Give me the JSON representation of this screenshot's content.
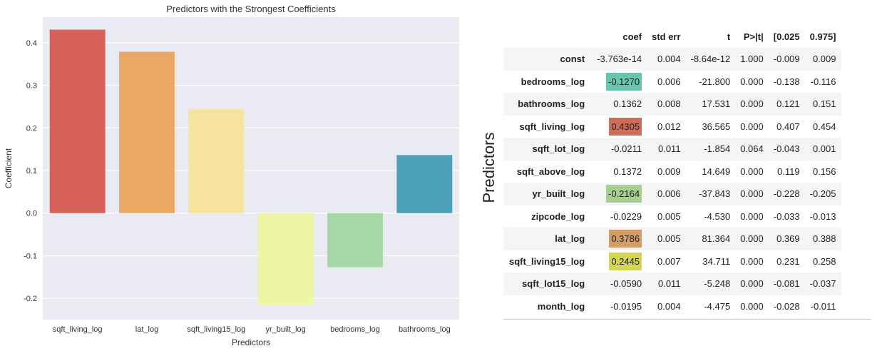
{
  "chart_data": {
    "type": "bar",
    "title": "Predictors with the Strongest Coefficients",
    "xlabel": "Predictors",
    "ylabel": "Coefficient",
    "categories": [
      "sqft_living_log",
      "lat_log",
      "sqft_living15_log",
      "yr_built_log",
      "bedrooms_log",
      "bathrooms_log"
    ],
    "values": [
      0.4305,
      0.3786,
      0.2445,
      -0.2164,
      -0.127,
      0.1362
    ],
    "colors": [
      "#d7605a",
      "#eba864",
      "#f6e39e",
      "#eef5a3",
      "#a6d7a7",
      "#4ba1b5"
    ],
    "ylim": [
      -0.25,
      0.46
    ],
    "yticks": [
      -0.2,
      -0.1,
      0.0,
      0.1,
      0.2,
      0.3,
      0.4
    ],
    "ytick_labels": [
      "-0.2",
      "-0.1",
      "0.0",
      "0.1",
      "0.2",
      "0.3",
      "0.4"
    ],
    "grid": true,
    "background": "#eaeaf2"
  },
  "table": {
    "side_label": "Predictors",
    "columns": [
      "",
      "coef",
      "std err",
      "t",
      "P>|t|",
      "[0.025",
      "0.975]"
    ],
    "rows": [
      {
        "name": "const",
        "coef": "-3.763e-14",
        "std_err": "0.004",
        "t": "-8.64e-12",
        "p": "1.000",
        "lo": "-0.009",
        "hi": "0.009",
        "hl": ""
      },
      {
        "name": "bedrooms_log",
        "coef": "-0.1270",
        "std_err": "0.006",
        "t": "-21.800",
        "p": "0.000",
        "lo": "-0.138",
        "hi": "-0.116",
        "hl": "#6ac5ad"
      },
      {
        "name": "bathrooms_log",
        "coef": "0.1362",
        "std_err": "0.008",
        "t": "17.531",
        "p": "0.000",
        "lo": "0.121",
        "hi": "0.151",
        "hl": ""
      },
      {
        "name": "sqft_living_log",
        "coef": "0.4305",
        "std_err": "0.012",
        "t": "36.565",
        "p": "0.000",
        "lo": "0.407",
        "hi": "0.454",
        "hl": "#cd6e5c"
      },
      {
        "name": "sqft_lot_log",
        "coef": "-0.0211",
        "std_err": "0.011",
        "t": "-1.854",
        "p": "0.064",
        "lo": "-0.043",
        "hi": "0.001",
        "hl": ""
      },
      {
        "name": "sqft_above_log",
        "coef": "0.1372",
        "std_err": "0.009",
        "t": "14.649",
        "p": "0.000",
        "lo": "0.119",
        "hi": "0.156",
        "hl": ""
      },
      {
        "name": "yr_built_log",
        "coef": "-0.2164",
        "std_err": "0.006",
        "t": "-37.843",
        "p": "0.000",
        "lo": "-0.228",
        "hi": "-0.205",
        "hl": "#a8cf92"
      },
      {
        "name": "zipcode_log",
        "coef": "-0.0229",
        "std_err": "0.005",
        "t": "-4.530",
        "p": "0.000",
        "lo": "-0.033",
        "hi": "-0.013",
        "hl": ""
      },
      {
        "name": "lat_log",
        "coef": "0.3786",
        "std_err": "0.005",
        "t": "81.364",
        "p": "0.000",
        "lo": "0.369",
        "hi": "0.388",
        "hl": "#d49c66"
      },
      {
        "name": "sqft_living15_log",
        "coef": "0.2445",
        "std_err": "0.007",
        "t": "34.711",
        "p": "0.000",
        "lo": "0.231",
        "hi": "0.258",
        "hl": "#d5d55a"
      },
      {
        "name": "sqft_lot15_log",
        "coef": "-0.0590",
        "std_err": "0.011",
        "t": "-5.248",
        "p": "0.000",
        "lo": "-0.081",
        "hi": "-0.037",
        "hl": ""
      },
      {
        "name": "month_log",
        "coef": "-0.0195",
        "std_err": "0.004",
        "t": "-4.475",
        "p": "0.000",
        "lo": "-0.028",
        "hi": "-0.011",
        "hl": ""
      }
    ]
  }
}
